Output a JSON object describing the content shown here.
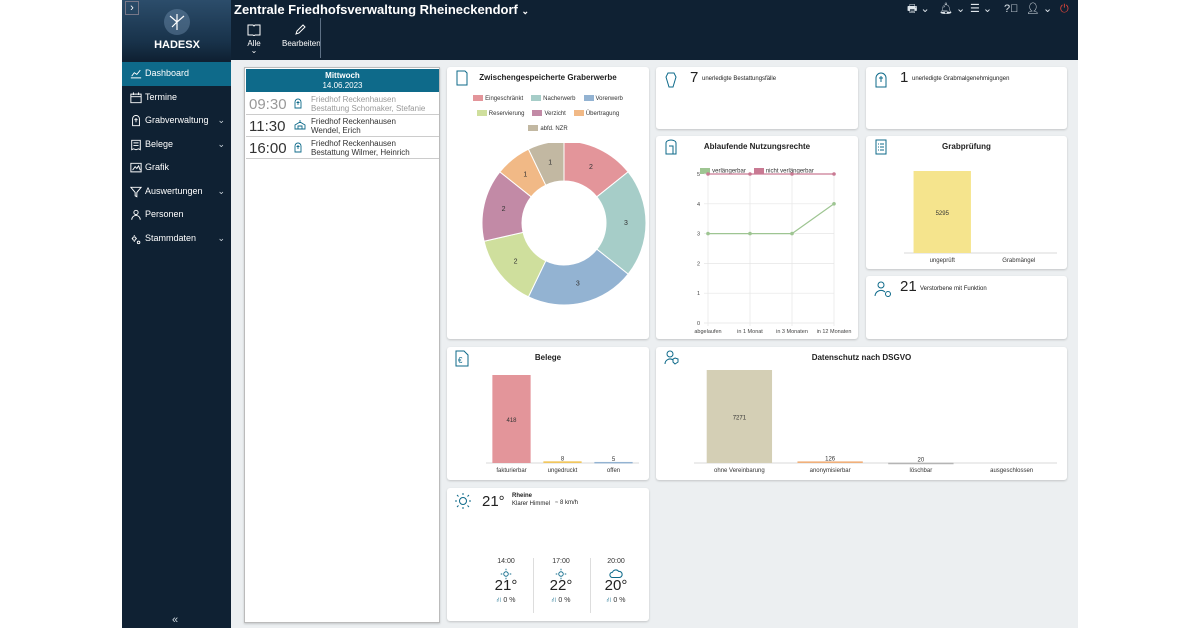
{
  "header": {
    "title": "Zentrale Friedhofsverwaltung Rheineckendorf",
    "logo_text": "HADESX",
    "toolbar": {
      "all_label": "Alle",
      "edit_label": "Bearbeiten"
    }
  },
  "sidebar": {
    "items": [
      {
        "label": "Dashboard",
        "icon": "chart-icon",
        "active": true
      },
      {
        "label": "Termine",
        "icon": "calendar-icon"
      },
      {
        "label": "Grabverwaltung",
        "icon": "grave-icon",
        "chevron": true
      },
      {
        "label": "Belege",
        "icon": "receipt-icon",
        "chevron": true
      },
      {
        "label": "Grafik",
        "icon": "graphic-icon"
      },
      {
        "label": "Auswertungen",
        "icon": "filter-icon",
        "chevron": true
      },
      {
        "label": "Personen",
        "icon": "person-icon"
      },
      {
        "label": "Stammdaten",
        "icon": "gears-icon",
        "chevron": true
      }
    ]
  },
  "agenda": {
    "day": "Mittwoch",
    "date": "14.06.2023",
    "entries": [
      {
        "time": "09:30",
        "line1": "Friedhof Reckenhausen",
        "line2": "Bestattung Schomaker, Stefanie",
        "past": true
      },
      {
        "time": "11:30",
        "line1": "Friedhof Reckenhausen",
        "line2": "Wendel, Erich",
        "past": false
      },
      {
        "time": "16:00",
        "line1": "Friedhof Reckenhausen",
        "line2": "Bestattung Wilmer, Heinrich",
        "past": false
      }
    ]
  },
  "cards": {
    "open_burials": {
      "value": "7",
      "label": "unerledigte Bestattungsfälle"
    },
    "open_permits": {
      "value": "1",
      "label": "unerledigte Grabmalgenehmigungen"
    },
    "deceased": {
      "value": "21",
      "label": "Verstorbene mit Funktion"
    }
  },
  "weather": {
    "temp": "21°",
    "city": "Rheine",
    "condition": "Klarer Himmel",
    "wind": "8 km/h",
    "forecast": [
      {
        "time": "14:00",
        "temp": "21°",
        "precip": "0 %",
        "icon": "sun-icon"
      },
      {
        "time": "17:00",
        "temp": "22°",
        "precip": "0 %",
        "icon": "sun-icon"
      },
      {
        "time": "20:00",
        "temp": "20°",
        "precip": "0 %",
        "icon": "cloud-icon"
      }
    ]
  },
  "chart_data": [
    {
      "id": "graberwerbe",
      "type": "pie",
      "title": "Zwischengespeicherte Graberwerbe",
      "labels": [
        "Eingeschränkt",
        "Nacherwerb",
        "Vorerwerb",
        "Reservierung",
        "Verzicht",
        "Übertragung",
        "abfd. NZR"
      ],
      "values": [
        2,
        3,
        3,
        2,
        2,
        1,
        1
      ],
      "colors": [
        "#e3959a",
        "#a6cdc8",
        "#93b3d2",
        "#cfdf9d",
        "#c28aa6",
        "#f1b986",
        "#c2b8a2"
      ],
      "ring_order": [
        0,
        1,
        2,
        3,
        4,
        5,
        6
      ]
    },
    {
      "id": "nutzungsrechte",
      "type": "line",
      "title": "Ablaufende Nutzungsrechte",
      "categories": [
        "abgelaufen",
        "in 1 Monat",
        "in 3 Monaten",
        "in 12 Monaten"
      ],
      "series": [
        {
          "name": "verlängerbar",
          "values": [
            3,
            3,
            3,
            4
          ],
          "color": "#9ec592"
        },
        {
          "name": "nicht verlängerbar",
          "values": [
            5,
            5,
            5,
            5
          ],
          "color": "#c97a93"
        }
      ],
      "ylim": [
        0,
        5
      ],
      "yticks": [
        0,
        1,
        2,
        3,
        4,
        5
      ],
      "legend": "top"
    },
    {
      "id": "grabpruefung",
      "type": "bar",
      "title": "Grabprüfung",
      "categories": [
        "ungeprüft",
        "Grabmängel"
      ],
      "values": [
        5295,
        0
      ],
      "colors": [
        "#f5e48d",
        "#f5e48d"
      ]
    },
    {
      "id": "belege",
      "type": "bar",
      "title": "Belege",
      "categories": [
        "fakturierbar",
        "ungedruckt",
        "offen"
      ],
      "values": [
        418,
        8,
        5
      ],
      "colors": [
        "#e3959a",
        "#f1c75e",
        "#93b3d2"
      ]
    },
    {
      "id": "datenschutz",
      "type": "bar",
      "title": "Datenschutz nach DSGVO",
      "categories": [
        "ohne Vereinbarung",
        "anonymisierbar",
        "löschbar",
        "ausgeschlossen"
      ],
      "values": [
        7271,
        126,
        20,
        0
      ],
      "colors": [
        "#d4cfb5",
        "#f0b07a",
        "#b5b5b5",
        "#cccccc"
      ]
    }
  ]
}
